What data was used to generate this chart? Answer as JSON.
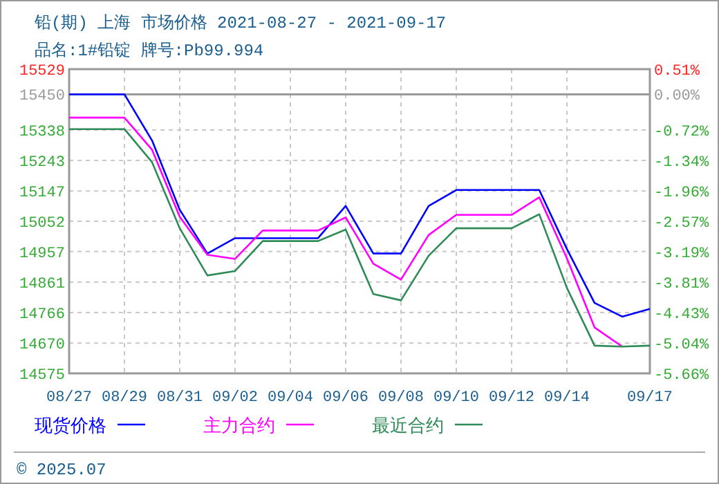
{
  "chart_data": {
    "type": "line",
    "title": "铅(期) 上海 市场价格 2021-08-27 - 2021-09-17",
    "subtitle": "品名:1#铅锭 牌号:Pb99.994",
    "x": [
      "2021-08-27",
      "2021-08-28",
      "2021-08-29",
      "2021-08-30",
      "2021-08-31",
      "2021-09-01",
      "2021-09-02",
      "2021-09-03",
      "2021-09-04",
      "2021-09-05",
      "2021-09-06",
      "2021-09-07",
      "2021-09-08",
      "2021-09-09",
      "2021-09-10",
      "2021-09-11",
      "2021-09-12",
      "2021-09-13",
      "2021-09-14",
      "2021-09-15",
      "2021-09-16",
      "2021-09-17"
    ],
    "series": [
      {
        "name": "现货价格",
        "color": "#0000ff",
        "values": [
          15450,
          15450,
          15450,
          15305,
          15088,
          14951,
          14999,
          14999,
          14999,
          14999,
          15100,
          14951,
          14951,
          15100,
          15150,
          15150,
          15150,
          15150,
          14965,
          14796,
          14753,
          14777
        ]
      },
      {
        "name": "主力合约",
        "color": "#ff00ff",
        "values": [
          15377,
          15377,
          15377,
          15276,
          15066,
          14947,
          14934,
          15023,
          15023,
          15023,
          15064,
          14919,
          14869,
          15009,
          15072,
          15072,
          15072,
          15127,
          14936,
          14719,
          14659,
          null
        ]
      },
      {
        "name": "最近合约",
        "color": "#2e8b57",
        "values": [
          15341,
          15341,
          15341,
          15237,
          15030,
          14882,
          14896,
          14990,
          14990,
          14990,
          15026,
          14824,
          14804,
          14944,
          15030,
          15030,
          15030,
          15074,
          14843,
          14662,
          14659,
          14662
        ]
      }
    ],
    "xlim": [
      "2021-08-27",
      "2021-09-17"
    ],
    "xticks": [
      {
        "value": "2021-08-27",
        "label": "08/27"
      },
      {
        "value": "2021-08-29",
        "label": "08/29"
      },
      {
        "value": "2021-08-31",
        "label": "08/31"
      },
      {
        "value": "2021-09-02",
        "label": "09/02"
      },
      {
        "value": "2021-09-04",
        "label": "09/04"
      },
      {
        "value": "2021-09-06",
        "label": "09/06"
      },
      {
        "value": "2021-09-08",
        "label": "09/08"
      },
      {
        "value": "2021-09-10",
        "label": "09/10"
      },
      {
        "value": "2021-09-12",
        "label": "09/12"
      },
      {
        "value": "2021-09-14",
        "label": "09/14"
      },
      {
        "value": "2021-09-17",
        "label": "09/17"
      }
    ],
    "ylim": [
      14575,
      15529
    ],
    "yticks": [
      15529,
      15450,
      15338,
      15243,
      15147,
      15052,
      14957,
      14861,
      14766,
      14670,
      14575
    ],
    "y2lim": [
      -5.66,
      0.51
    ],
    "y2ticks": [
      {
        "value": 0.51,
        "label": "0.51%"
      },
      {
        "value": 0,
        "label": "0.00%"
      },
      {
        "value": -0.72,
        "label": "-0.72%"
      },
      {
        "value": -1.34,
        "label": "-1.34%"
      },
      {
        "value": -1.96,
        "label": "-1.96%"
      },
      {
        "value": -2.57,
        "label": "-2.57%"
      },
      {
        "value": -3.19,
        "label": "-3.19%"
      },
      {
        "value": -3.81,
        "label": "-3.81%"
      },
      {
        "value": -4.43,
        "label": "-4.43%"
      },
      {
        "value": -5.04,
        "label": "-5.04%"
      },
      {
        "value": -5.66,
        "label": "-5.66%"
      }
    ],
    "ref_lines": [
      {
        "axis": "y",
        "value": 15450,
        "color": "#999999"
      }
    ],
    "grid": true,
    "legend": "bottom",
    "line_style": "solid",
    "marker": "none",
    "annotations": [
      "© 2025.07"
    ]
  }
}
